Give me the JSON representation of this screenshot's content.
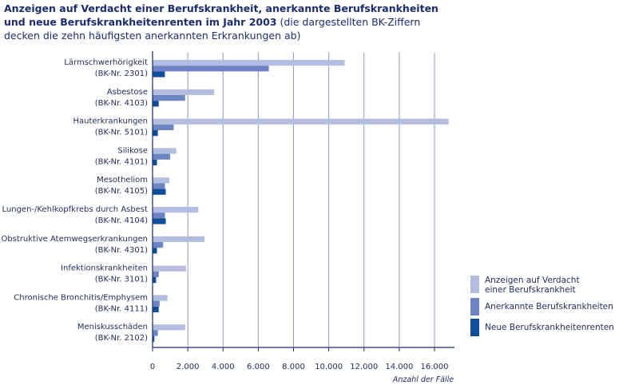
{
  "title": {
    "bold": "Anzeigen auf Verdacht einer Berufskrankheit, anerkannte Berufskrankheiten und neue Berufskrankheitenrenten im Jahr 2003",
    "rest": " (die dargestellten BK-Ziffern decken die zehn häufigsten anerkannten Erkrankungen ab)"
  },
  "colors": {
    "anzeigen": "#b2bde0",
    "anerkannt": "#6d84c2",
    "renten": "#0e4d99",
    "grid": "#8f97c2",
    "axis": "#1f2a5c"
  },
  "chart_data": {
    "type": "bar",
    "orientation": "horizontal",
    "xlabel": "Anzahl der Fälle",
    "xlim": [
      0,
      16000
    ],
    "xticks": [
      0,
      2000,
      4000,
      6000,
      8000,
      10000,
      12000,
      14000,
      16000
    ],
    "xtick_labels": [
      "0",
      "2.000",
      "4.000",
      "6.000",
      "8.000",
      "10.000",
      "12.000",
      "14.000",
      "16.000"
    ],
    "grid": true,
    "legend_position": "right",
    "categories": [
      [
        "Lärmschwerhörigkeit",
        "(BK-Nr. 2301)"
      ],
      [
        "Asbestose",
        "(BK-Nr. 4103)"
      ],
      [
        "Hauterkrankungen",
        "(BK-Nr. 5101)"
      ],
      [
        "Silikose",
        "(BK-Nr. 4101)"
      ],
      [
        "Mesotheliom",
        "(BK-Nr. 4105)"
      ],
      [
        "Lungen-/Kehlkopfkrebs durch Asbest",
        "(BK-Nr. 4104)"
      ],
      [
        "Obstruktive Atemwegserkrankungen",
        "(BK-Nr. 4301)"
      ],
      [
        "Infektionskrankheiten",
        "(BK-Nr. 3101)"
      ],
      [
        "Chronische Bronchitis/Emphysem",
        "(BK-Nr. 4111)"
      ],
      [
        "Meniskusschäden",
        "(BK-Nr. 2102)"
      ]
    ],
    "series": [
      {
        "name": "Anzeigen auf Verdacht einer Berufskrankheit",
        "key": "anzeigen",
        "values": [
          10900,
          3500,
          16800,
          1350,
          950,
          2600,
          2950,
          1900,
          850,
          1850
        ]
      },
      {
        "name": "Anerkannte Berufskrankheiten",
        "key": "anerkannt",
        "values": [
          6600,
          1850,
          1200,
          1000,
          700,
          700,
          600,
          350,
          400,
          300
        ]
      },
      {
        "name": "Neue Berufskrankheitenrenten",
        "key": "renten",
        "values": [
          700,
          350,
          300,
          250,
          750,
          750,
          250,
          200,
          350,
          100
        ]
      }
    ]
  },
  "legend": [
    {
      "lines": [
        "Anzeigen auf Verdacht",
        "einer Berufskrankheit"
      ],
      "key": "anzeigen"
    },
    {
      "lines": [
        "Anerkannte Berufskrankheiten"
      ],
      "key": "anerkannt"
    },
    {
      "lines": [
        "Neue Berufskrankheitenrenten"
      ],
      "key": "renten"
    }
  ]
}
